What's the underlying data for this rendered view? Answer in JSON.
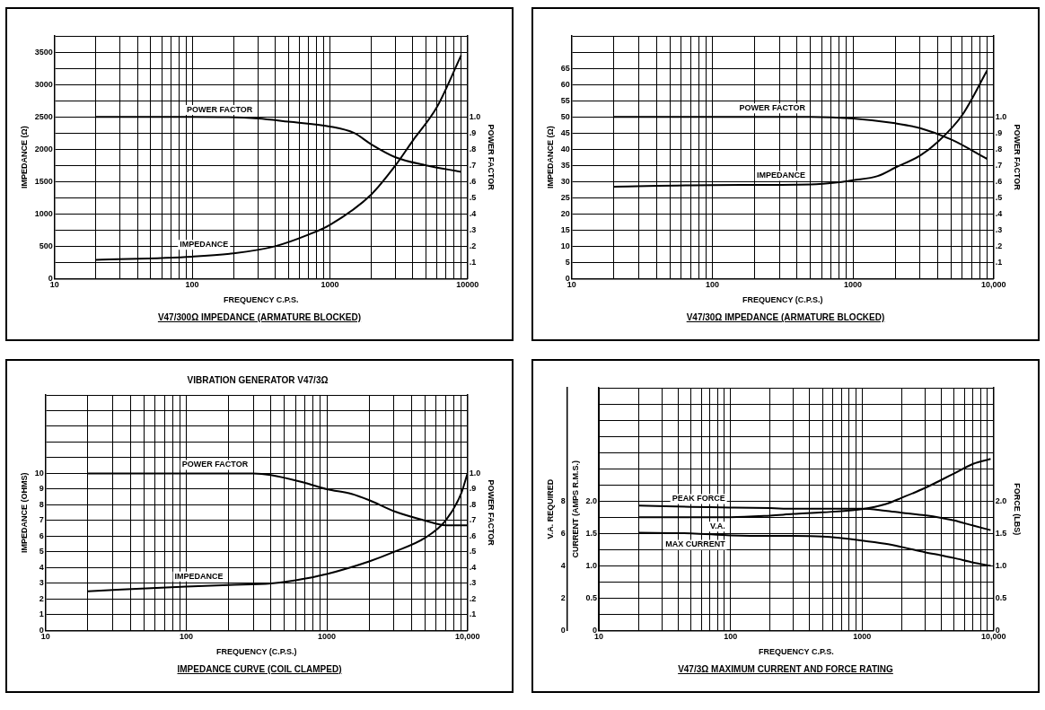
{
  "chart_data": [
    {
      "type": "line",
      "xlabel": "FREQUENCY C.P.S.",
      "ylabel": "IMPEDANCE (Ω)",
      "y2label": "POWER FACTOR",
      "annotations": [
        "V47/300Ω IMPEDANCE (ARMATURE BLOCKED)"
      ],
      "log": "x",
      "grid": true,
      "marker": "none",
      "legend": false,
      "xlim": [
        10,
        10000
      ],
      "xticks": [
        10,
        {
          "value": 20,
          "label": null
        },
        {
          "value": 30,
          "label": null
        },
        {
          "value": 40,
          "label": null
        },
        {
          "value": 50,
          "label": null
        },
        {
          "value": 60,
          "label": null
        },
        {
          "value": 70,
          "label": null
        },
        {
          "value": 80,
          "label": null
        },
        {
          "value": 90,
          "label": null
        },
        100,
        {
          "value": 200,
          "label": null
        },
        {
          "value": 300,
          "label": null
        },
        {
          "value": 400,
          "label": null
        },
        {
          "value": 500,
          "label": null
        },
        {
          "value": 600,
          "label": null
        },
        {
          "value": 700,
          "label": null
        },
        {
          "value": 800,
          "label": null
        },
        {
          "value": 900,
          "label": null
        },
        1000,
        {
          "value": 2000,
          "label": null
        },
        {
          "value": 3000,
          "label": null
        },
        {
          "value": 4000,
          "label": null
        },
        {
          "value": 5000,
          "label": null
        },
        {
          "value": 6000,
          "label": null
        },
        {
          "value": 7000,
          "label": null
        },
        {
          "value": 8000,
          "label": null
        },
        {
          "value": 9000,
          "label": null
        },
        10000
      ],
      "ylim": [
        0,
        3750
      ],
      "yticks": [
        0,
        {
          "value": 250,
          "label": null
        },
        500,
        {
          "value": 750,
          "label": null
        },
        1000,
        {
          "value": 1250,
          "label": null
        },
        1500,
        {
          "value": 1750,
          "label": null
        },
        2000,
        {
          "value": 2250,
          "label": null
        },
        2500,
        {
          "value": 2750,
          "label": null
        },
        3000,
        {
          "value": 3250,
          "label": null
        },
        3500,
        {
          "value": 3750,
          "label": null
        }
      ],
      "y2lim": [
        0,
        1.5
      ],
      "y2ticks": [
        {
          "value": 0.1,
          "label": ".1"
        },
        {
          "value": 0.2,
          "label": ".2"
        },
        {
          "value": 0.3,
          "label": ".3"
        },
        {
          "value": 0.4,
          "label": ".4"
        },
        {
          "value": 0.5,
          "label": ".5"
        },
        {
          "value": 0.6,
          "label": ".6"
        },
        {
          "value": 0.7,
          "label": ".7"
        },
        {
          "value": 0.8,
          "label": ".8"
        },
        {
          "value": 0.9,
          "label": ".9"
        },
        {
          "value": 1,
          "label": "1.0"
        }
      ],
      "series": [
        {
          "name": "POWER FACTOR",
          "color": "#000000",
          "axis": "y2",
          "x": [
            20,
            100,
            300,
            500,
            1000,
            1500,
            2000,
            3000,
            5000,
            9000
          ],
          "values": [
            1.0,
            1.0,
            0.99,
            0.97,
            0.94,
            0.9,
            0.83,
            0.75,
            0.7,
            0.66
          ]
        },
        {
          "name": "IMPEDANCE",
          "color": "#000000",
          "x": [
            20,
            100,
            200,
            400,
            700,
            1000,
            2000,
            3000,
            4000,
            6000,
            9000
          ],
          "values": [
            290,
            340,
            390,
            500,
            680,
            830,
            1300,
            1750,
            2130,
            2650,
            3450
          ]
        }
      ]
    },
    {
      "type": "line",
      "xlabel": "FREQUENCY (C.P.S.)",
      "ylabel": "IMPEDANCE (Ω)",
      "y2label": "POWER FACTOR",
      "annotations": [
        "V47/30Ω IMPEDANCE (ARMATURE BLOCKED)"
      ],
      "log": "x",
      "grid": true,
      "marker": "none",
      "legend": false,
      "xlim": [
        10,
        10000
      ],
      "xticks": [
        10,
        {
          "value": 20,
          "label": null
        },
        {
          "value": 30,
          "label": null
        },
        {
          "value": 40,
          "label": null
        },
        {
          "value": 50,
          "label": null
        },
        {
          "value": 60,
          "label": null
        },
        {
          "value": 70,
          "label": null
        },
        {
          "value": 80,
          "label": null
        },
        {
          "value": 90,
          "label": null
        },
        100,
        {
          "value": 200,
          "label": null
        },
        {
          "value": 300,
          "label": null
        },
        {
          "value": 400,
          "label": null
        },
        {
          "value": 500,
          "label": null
        },
        {
          "value": 600,
          "label": null
        },
        {
          "value": 700,
          "label": null
        },
        {
          "value": 800,
          "label": null
        },
        {
          "value": 900,
          "label": null
        },
        1000,
        {
          "value": 2000,
          "label": null
        },
        {
          "value": 3000,
          "label": null
        },
        {
          "value": 4000,
          "label": null
        },
        {
          "value": 5000,
          "label": null
        },
        {
          "value": 6000,
          "label": null
        },
        {
          "value": 7000,
          "label": null
        },
        {
          "value": 8000,
          "label": null
        },
        {
          "value": 9000,
          "label": null
        },
        {
          "value": 10000,
          "label": "10,000"
        }
      ],
      "ylim": [
        0,
        75
      ],
      "yticks": [
        0,
        5,
        10,
        15,
        20,
        25,
        30,
        35,
        40,
        45,
        50,
        55,
        60,
        65,
        {
          "value": 70,
          "label": null
        },
        {
          "value": 75,
          "label": null
        }
      ],
      "y2lim": [
        0,
        1.5
      ],
      "y2ticks": [
        {
          "value": 0.1,
          "label": ".1"
        },
        {
          "value": 0.2,
          "label": ".2"
        },
        {
          "value": 0.3,
          "label": ".3"
        },
        {
          "value": 0.4,
          "label": ".4"
        },
        {
          "value": 0.5,
          "label": ".5"
        },
        {
          "value": 0.6,
          "label": ".6"
        },
        {
          "value": 0.7,
          "label": ".7"
        },
        {
          "value": 0.8,
          "label": ".8"
        },
        {
          "value": 0.9,
          "label": ".9"
        },
        {
          "value": 1,
          "label": "1.0"
        }
      ],
      "series": [
        {
          "name": "POWER FACTOR",
          "color": "#000000",
          "axis": "y2",
          "x": [
            20,
            100,
            500,
            1000,
            2000,
            3000,
            5000,
            9000
          ],
          "values": [
            1.0,
            1.0,
            1.0,
            0.99,
            0.96,
            0.93,
            0.86,
            0.74
          ]
        },
        {
          "name": "IMPEDANCE",
          "color": "#000000",
          "x": [
            20,
            100,
            500,
            800,
            1000,
            1500,
            2000,
            3000,
            4000,
            6000,
            9000
          ],
          "values": [
            28.4,
            28.9,
            29.1,
            29.8,
            30.4,
            31.7,
            34.3,
            38,
            42.2,
            50.6,
            64.3
          ]
        }
      ]
    },
    {
      "type": "line",
      "title": "VIBRATION GENERATOR V47/3Ω",
      "xlabel": "FREQUENCY (C.P.S.)",
      "ylabel": "IMPEDANCE (OHMS)",
      "y2label": "POWER FACTOR",
      "annotations": [
        "IMPEDANCE CURVE (COIL CLAMPED)"
      ],
      "log": "x",
      "grid": true,
      "marker": "none",
      "legend": false,
      "xlim": [
        10,
        10000
      ],
      "xticks": [
        10,
        {
          "value": 20,
          "label": null
        },
        {
          "value": 30,
          "label": null
        },
        {
          "value": 40,
          "label": null
        },
        {
          "value": 50,
          "label": null
        },
        {
          "value": 60,
          "label": null
        },
        {
          "value": 70,
          "label": null
        },
        {
          "value": 80,
          "label": null
        },
        {
          "value": 90,
          "label": null
        },
        100,
        {
          "value": 200,
          "label": null
        },
        {
          "value": 300,
          "label": null
        },
        {
          "value": 400,
          "label": null
        },
        {
          "value": 500,
          "label": null
        },
        {
          "value": 600,
          "label": null
        },
        {
          "value": 700,
          "label": null
        },
        {
          "value": 800,
          "label": null
        },
        {
          "value": 900,
          "label": null
        },
        1000,
        {
          "value": 2000,
          "label": null
        },
        {
          "value": 3000,
          "label": null
        },
        {
          "value": 4000,
          "label": null
        },
        {
          "value": 5000,
          "label": null
        },
        {
          "value": 6000,
          "label": null
        },
        {
          "value": 7000,
          "label": null
        },
        {
          "value": 8000,
          "label": null
        },
        {
          "value": 9000,
          "label": null
        },
        {
          "value": 10000,
          "label": "10,000"
        }
      ],
      "ylim": [
        0,
        15
      ],
      "yticks": [
        0,
        1,
        2,
        3,
        4,
        5,
        6,
        7,
        8,
        9,
        10,
        {
          "value": 11,
          "label": null
        },
        {
          "value": 12,
          "label": null
        },
        {
          "value": 13,
          "label": null
        },
        {
          "value": 14,
          "label": null
        },
        {
          "value": 15,
          "label": null
        }
      ],
      "y2lim": [
        0,
        1.5
      ],
      "y2ticks": [
        {
          "value": 0.1,
          "label": ".1"
        },
        {
          "value": 0.2,
          "label": ".2"
        },
        {
          "value": 0.3,
          "label": ".3"
        },
        {
          "value": 0.4,
          "label": ".4"
        },
        {
          "value": 0.5,
          "label": ".5"
        },
        {
          "value": 0.6,
          "label": ".6"
        },
        {
          "value": 0.7,
          "label": ".7"
        },
        {
          "value": 0.8,
          "label": ".8"
        },
        {
          "value": 0.9,
          "label": ".9"
        },
        {
          "value": 1,
          "label": "1.0"
        }
      ],
      "series": [
        {
          "name": "POWER FACTOR",
          "color": "#000000",
          "axis": "y2",
          "x": [
            20,
            100,
            300,
            400,
            700,
            1000,
            1500,
            2000,
            3000,
            5000,
            7000,
            10000
          ],
          "values": [
            1.0,
            1.0,
            1.0,
            0.99,
            0.94,
            0.9,
            0.87,
            0.83,
            0.76,
            0.7,
            0.67,
            0.67
          ]
        },
        {
          "name": "IMPEDANCE",
          "color": "#000000",
          "x": [
            20,
            100,
            200,
            400,
            600,
            1000,
            2000,
            3000,
            5000,
            7000,
            9000,
            10000
          ],
          "values": [
            2.5,
            2.8,
            2.9,
            3.0,
            3.2,
            3.6,
            4.4,
            5.0,
            5.9,
            7.0,
            8.7,
            10
          ]
        }
      ]
    },
    {
      "type": "line",
      "xlabel": "FREQUENCY C.P.S.",
      "ylabel": "CURRENT (AMPS R.M.S.)",
      "y2label": "FORCE (LBS)",
      "y3label": "V.A. REQUIRED",
      "annotations": [
        "V47/3Ω MAXIMUM CURRENT AND FORCE RATING"
      ],
      "log": "x",
      "grid": true,
      "marker": "none",
      "legend": false,
      "xlim": [
        10,
        10000
      ],
      "xticks": [
        10,
        {
          "value": 20,
          "label": null
        },
        {
          "value": 30,
          "label": null
        },
        {
          "value": 40,
          "label": null
        },
        {
          "value": 50,
          "label": null
        },
        {
          "value": 60,
          "label": null
        },
        {
          "value": 70,
          "label": null
        },
        {
          "value": 80,
          "label": null
        },
        {
          "value": 90,
          "label": null
        },
        100,
        {
          "value": 200,
          "label": null
        },
        {
          "value": 300,
          "label": null
        },
        {
          "value": 400,
          "label": null
        },
        {
          "value": 500,
          "label": null
        },
        {
          "value": 600,
          "label": null
        },
        {
          "value": 700,
          "label": null
        },
        {
          "value": 800,
          "label": null
        },
        {
          "value": 900,
          "label": null
        },
        1000,
        {
          "value": 2000,
          "label": null
        },
        {
          "value": 3000,
          "label": null
        },
        {
          "value": 4000,
          "label": null
        },
        {
          "value": 5000,
          "label": null
        },
        {
          "value": 6000,
          "label": null
        },
        {
          "value": 7000,
          "label": null
        },
        {
          "value": 8000,
          "label": null
        },
        {
          "value": 9000,
          "label": null
        },
        {
          "value": 10000,
          "label": "10,000"
        }
      ],
      "ylim": [
        0,
        3.75
      ],
      "yticks": [
        0,
        {
          "value": 0.25,
          "label": null
        },
        {
          "value": 0.5,
          "label": "0.5"
        },
        {
          "value": 0.75,
          "label": null
        },
        {
          "value": 1,
          "label": "1.0"
        },
        {
          "value": 1.25,
          "label": null
        },
        {
          "value": 1.5,
          "label": "1.5"
        },
        {
          "value": 1.75,
          "label": null
        },
        {
          "value": 2,
          "label": "2.0"
        },
        {
          "value": 2.25,
          "label": null
        },
        {
          "value": 2.5,
          "label": null
        },
        {
          "value": 2.75,
          "label": null
        },
        {
          "value": 3,
          "label": null
        },
        {
          "value": 3.25,
          "label": null
        },
        {
          "value": 3.5,
          "label": null
        },
        {
          "value": 3.75,
          "label": null
        }
      ],
      "y2lim": [
        0,
        3.75
      ],
      "y2ticks": [
        0,
        {
          "value": 0.5,
          "label": "0.5"
        },
        {
          "value": 1,
          "label": "1.0"
        },
        {
          "value": 1.5,
          "label": "1.5"
        },
        {
          "value": 2,
          "label": "2.0"
        }
      ],
      "y3lim": [
        0,
        15
      ],
      "y3ticks": [
        0,
        2,
        4,
        6,
        8
      ],
      "series": [
        {
          "name": "PEAK FORCE",
          "color": "#000000",
          "axis": "y2",
          "x": [
            20,
            50,
            100,
            200,
            300,
            500,
            1000,
            1500,
            2000,
            3000,
            4000,
            5000,
            7000,
            9500
          ],
          "values": [
            1.93,
            1.91,
            1.9,
            1.89,
            1.88,
            1.88,
            1.88,
            1.85,
            1.82,
            1.78,
            1.74,
            1.7,
            1.62,
            1.55
          ]
        },
        {
          "name": "V.A.",
          "color": "#000000",
          "axis": "y3",
          "x": [
            20,
            50,
            100,
            200,
            300,
            500,
            1000,
            1500,
            2000,
            3000,
            4000,
            5000,
            7000,
            9500
          ],
          "values": [
            7.0,
            7.0,
            7.0,
            7.1,
            7.2,
            7.3,
            7.5,
            7.8,
            8.2,
            8.8,
            9.3,
            9.7,
            10.3,
            10.6
          ]
        },
        {
          "name": "MAX CURRENT",
          "color": "#000000",
          "x": [
            20,
            50,
            100,
            200,
            300,
            500,
            1000,
            1500,
            2000,
            3000,
            4000,
            5000,
            7000,
            9500
          ],
          "values": [
            1.51,
            1.5,
            1.47,
            1.46,
            1.46,
            1.45,
            1.39,
            1.34,
            1.29,
            1.21,
            1.16,
            1.12,
            1.05,
            1.0
          ]
        }
      ]
    }
  ]
}
